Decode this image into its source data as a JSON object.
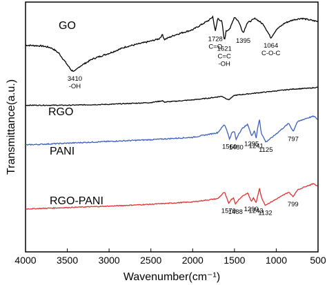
{
  "chart_data": {
    "type": "line",
    "xlabel": "Wavenumber(cm⁻¹)",
    "ylabel": "Transmittance(a.u.)",
    "xlim": [
      4000,
      500
    ],
    "x_reversed": true,
    "x_ticks": [
      "4000",
      "3500",
      "3000",
      "2500",
      "2000",
      "1500",
      "1000",
      "500"
    ],
    "y_ticks_shown": false,
    "grid": false,
    "series": [
      {
        "name": "GO",
        "color": "#000000",
        "points": [
          [
            4000,
            0.53
          ],
          [
            3800,
            0.52
          ],
          [
            3700,
            0.5
          ],
          [
            3650,
            0.47
          ],
          [
            3600,
            0.43
          ],
          [
            3500,
            0.29
          ],
          [
            3450,
            0.22
          ],
          [
            3410,
            0.21
          ],
          [
            3350,
            0.27
          ],
          [
            3200,
            0.36
          ],
          [
            3000,
            0.43
          ],
          [
            2800,
            0.51
          ],
          [
            2500,
            0.58
          ],
          [
            2400,
            0.61
          ],
          [
            2360,
            0.66
          ],
          [
            2340,
            0.6
          ],
          [
            2200,
            0.66
          ],
          [
            2000,
            0.72
          ],
          [
            1900,
            0.78
          ],
          [
            1800,
            0.84
          ],
          [
            1760,
            0.88
          ],
          [
            1728,
            0.7
          ],
          [
            1700,
            0.86
          ],
          [
            1650,
            0.82
          ],
          [
            1621,
            0.58
          ],
          [
            1600,
            0.7
          ],
          [
            1550,
            0.74
          ],
          [
            1500,
            0.88
          ],
          [
            1450,
            0.82
          ],
          [
            1395,
            0.68
          ],
          [
            1350,
            0.8
          ],
          [
            1250,
            0.86
          ],
          [
            1150,
            0.78
          ],
          [
            1064,
            0.62
          ],
          [
            1000,
            0.72
          ],
          [
            900,
            0.8
          ],
          [
            800,
            0.84
          ],
          [
            700,
            0.86
          ],
          [
            600,
            0.84
          ],
          [
            500,
            0.82
          ]
        ],
        "annotations": [
          {
            "x": 3410,
            "text": [
              "3410",
              "-OH"
            ]
          },
          {
            "x": 1728,
            "text": [
              "1728",
              "C=O"
            ]
          },
          {
            "x": 1621,
            "text": [
              "1621",
              "C=C"
            ]
          },
          {
            "x": 1621,
            "text": [
              "-OH"
            ]
          },
          {
            "x": 1395,
            "text": [
              "1395"
            ]
          },
          {
            "x": 1064,
            "text": [
              "1064",
              "C-O-C"
            ]
          }
        ]
      },
      {
        "name": "RGO",
        "color": "#000000",
        "points": [
          [
            4000,
            0.5
          ],
          [
            3500,
            0.5
          ],
          [
            3000,
            0.52
          ],
          [
            2500,
            0.56
          ],
          [
            2360,
            0.6
          ],
          [
            2340,
            0.57
          ],
          [
            2000,
            0.62
          ],
          [
            1800,
            0.66
          ],
          [
            1650,
            0.7
          ],
          [
            1570,
            0.62
          ],
          [
            1500,
            0.72
          ],
          [
            1200,
            0.78
          ],
          [
            1000,
            0.82
          ],
          [
            800,
            0.86
          ],
          [
            600,
            0.88
          ],
          [
            500,
            0.9
          ]
        ]
      },
      {
        "name": "PANI",
        "color": "#3a5fbf",
        "points": [
          [
            4000,
            0.47
          ],
          [
            3500,
            0.5
          ],
          [
            3000,
            0.53
          ],
          [
            2500,
            0.56
          ],
          [
            2000,
            0.6
          ],
          [
            1700,
            0.68
          ],
          [
            1620,
            0.82
          ],
          [
            1590,
            0.72
          ],
          [
            1560,
            0.57
          ],
          [
            1530,
            0.68
          ],
          [
            1500,
            0.7
          ],
          [
            1480,
            0.56
          ],
          [
            1450,
            0.66
          ],
          [
            1400,
            0.76
          ],
          [
            1340,
            0.82
          ],
          [
            1295,
            0.62
          ],
          [
            1260,
            0.72
          ],
          [
            1241,
            0.58
          ],
          [
            1220,
            0.78
          ],
          [
            1200,
            0.9
          ],
          [
            1180,
            0.68
          ],
          [
            1125,
            0.52
          ],
          [
            1050,
            0.6
          ],
          [
            950,
            0.72
          ],
          [
            850,
            0.84
          ],
          [
            797,
            0.7
          ],
          [
            750,
            0.86
          ],
          [
            650,
            0.92
          ],
          [
            550,
            0.96
          ],
          [
            500,
            0.9
          ]
        ],
        "annotations": [
          {
            "x": 1560,
            "text": [
              "1560"
            ]
          },
          {
            "x": 1480,
            "text": [
              "1480"
            ]
          },
          {
            "x": 1295,
            "text": [
              "1295"
            ]
          },
          {
            "x": 1241,
            "text": [
              "1241"
            ]
          },
          {
            "x": 1125,
            "text": [
              "1125"
            ]
          },
          {
            "x": 797,
            "text": [
              "797"
            ]
          }
        ]
      },
      {
        "name": "RGO-PANI",
        "color": "#e03030",
        "points": [
          [
            4000,
            0.4
          ],
          [
            3500,
            0.43
          ],
          [
            3000,
            0.46
          ],
          [
            2500,
            0.5
          ],
          [
            2000,
            0.55
          ],
          [
            1700,
            0.62
          ],
          [
            1620,
            0.76
          ],
          [
            1590,
            0.62
          ],
          [
            1570,
            0.52
          ],
          [
            1540,
            0.6
          ],
          [
            1510,
            0.64
          ],
          [
            1488,
            0.5
          ],
          [
            1450,
            0.6
          ],
          [
            1400,
            0.68
          ],
          [
            1340,
            0.74
          ],
          [
            1299,
            0.56
          ],
          [
            1270,
            0.64
          ],
          [
            1243,
            0.52
          ],
          [
            1220,
            0.7
          ],
          [
            1200,
            0.84
          ],
          [
            1180,
            0.66
          ],
          [
            1132,
            0.48
          ],
          [
            1050,
            0.56
          ],
          [
            950,
            0.66
          ],
          [
            850,
            0.76
          ],
          [
            799,
            0.66
          ],
          [
            750,
            0.8
          ],
          [
            650,
            0.88
          ],
          [
            550,
            0.94
          ],
          [
            500,
            0.88
          ]
        ],
        "annotations": [
          {
            "x": 1570,
            "text": [
              "1570"
            ]
          },
          {
            "x": 1488,
            "text": [
              "1488"
            ]
          },
          {
            "x": 1299,
            "text": [
              "1299"
            ]
          },
          {
            "x": 1243,
            "text": [
              "1243"
            ]
          },
          {
            "x": 1132,
            "text": [
              "1132"
            ]
          },
          {
            "x": 799,
            "text": [
              "799"
            ]
          }
        ]
      }
    ]
  }
}
